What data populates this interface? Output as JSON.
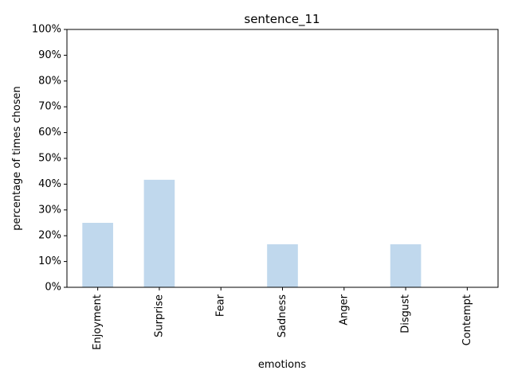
{
  "chart_data": {
    "type": "bar",
    "title": "sentence_11",
    "xlabel": "emotions",
    "ylabel": "percentage of times chosen",
    "categories": [
      "Enjoyment",
      "Surprise",
      "Fear",
      "Sadness",
      "Anger",
      "Disgust",
      "Contempt"
    ],
    "values": [
      25,
      41.7,
      0,
      16.7,
      0,
      16.7,
      0
    ],
    "ylim": [
      0,
      100
    ],
    "yticks": [
      "0%",
      "10%",
      "20%",
      "30%",
      "40%",
      "50%",
      "60%",
      "70%",
      "80%",
      "90%",
      "100%"
    ],
    "bar_color": "#c0d8ed",
    "grid": false,
    "legend": "none"
  }
}
